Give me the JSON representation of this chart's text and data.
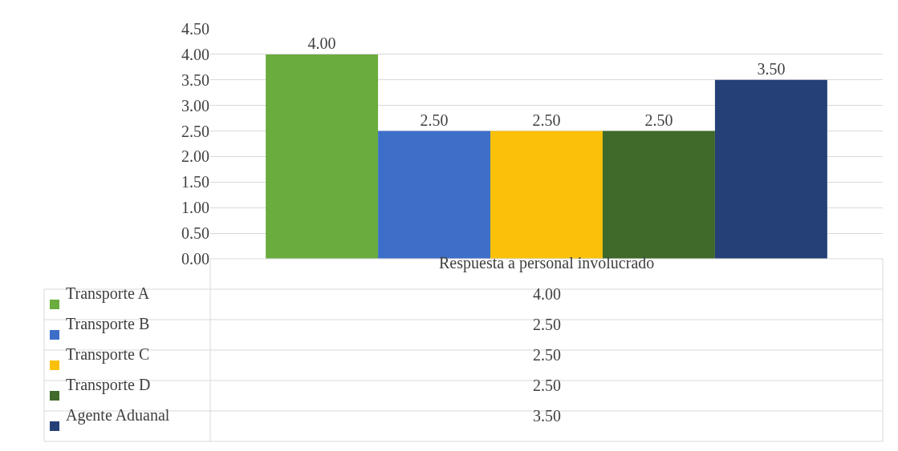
{
  "chart_data": {
    "type": "bar",
    "categories": [
      "Respuesta a personal involucrado"
    ],
    "series": [
      {
        "name": "Transporte A",
        "color": "#6aac3e",
        "values": [
          4.0
        ],
        "value_labels": [
          "4.00"
        ]
      },
      {
        "name": "Transporte B",
        "color": "#3d6fc9",
        "values": [
          2.5
        ],
        "value_labels": [
          "2.50"
        ]
      },
      {
        "name": "Transporte C",
        "color": "#fbc10a",
        "values": [
          2.5
        ],
        "value_labels": [
          "2.50"
        ]
      },
      {
        "name": "Transporte D",
        "color": "#3f6a2a",
        "values": [
          2.5
        ],
        "value_labels": [
          "2.50"
        ]
      },
      {
        "name": "Agente Aduanal",
        "color": "#253f77",
        "values": [
          3.5
        ],
        "value_labels": [
          "3.50"
        ]
      }
    ],
    "ylim": [
      0,
      4.5
    ],
    "yticks": [
      {
        "value": 0,
        "label": "0.00"
      },
      {
        "value": 0.5,
        "label": "0.50"
      },
      {
        "value": 1,
        "label": "1.00"
      },
      {
        "value": 1.5,
        "label": "1.50"
      },
      {
        "value": 2,
        "label": "2.00"
      },
      {
        "value": 2.5,
        "label": "2.50"
      },
      {
        "value": 3,
        "label": "3.00"
      },
      {
        "value": 3.5,
        "label": "3.50"
      },
      {
        "value": 4,
        "label": "4.00"
      },
      {
        "value": 4.5,
        "label": "4.50"
      }
    ],
    "grid": "y",
    "legend": "bottom"
  }
}
